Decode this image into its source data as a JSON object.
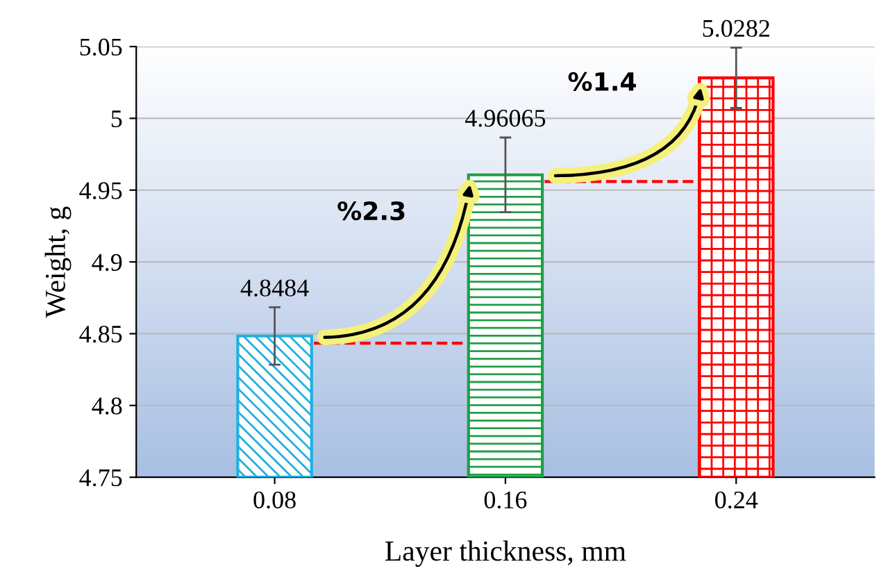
{
  "chart_data": {
    "type": "bar",
    "xlabel": "Layer thickness, mm",
    "ylabel": "Weight, g",
    "categories": [
      "0.08",
      "0.16",
      "0.24"
    ],
    "values": [
      4.8484,
      4.96065,
      5.0282
    ],
    "colors": [
      "#1fb0e0",
      "#1f9e48",
      "#ff0000"
    ],
    "errors": [
      0.02,
      0.026,
      0.021
    ],
    "data_labels": true,
    "ylim": [
      4.75,
      5.05
    ],
    "yticks": [
      4.75,
      4.8,
      4.85,
      4.9,
      4.95,
      5,
      5.05
    ],
    "grid": "y",
    "ref_lines": [
      {
        "axis": "y",
        "value": 4.8434,
        "label": null,
        "color": "#ff0000",
        "line_style": "dashed"
      },
      {
        "axis": "y",
        "value": 4.956,
        "label": null,
        "color": "#ff0000",
        "line_style": "dashed"
      }
    ],
    "annotations": [
      "%2.3",
      "%1.4"
    ]
  }
}
